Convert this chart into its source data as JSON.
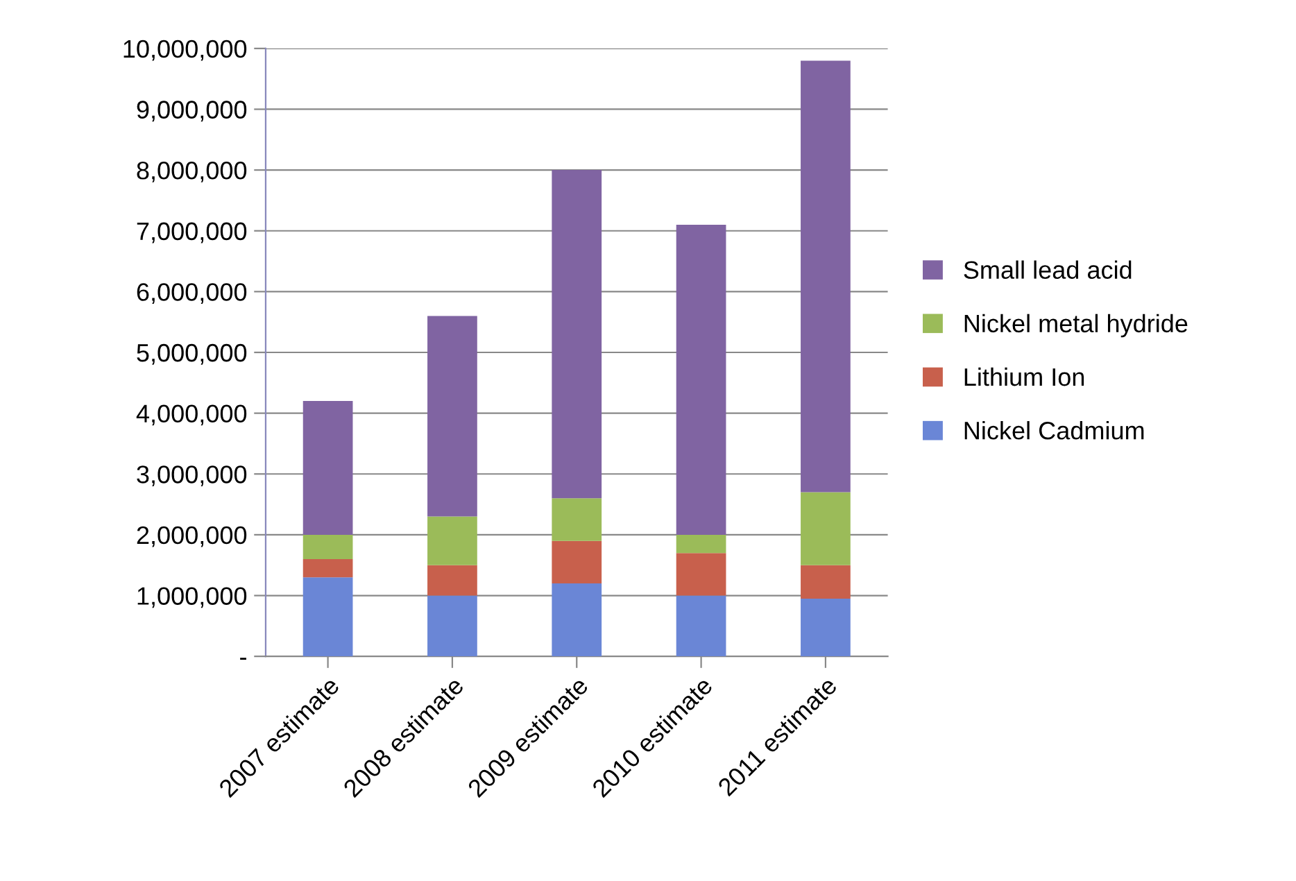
{
  "chart_data": {
    "type": "bar",
    "stacked": true,
    "categories": [
      "2007 estimate",
      "2008 estimate",
      "2009 estimate",
      "2010 estimate",
      "2011 estimate"
    ],
    "series": [
      {
        "name": "Nickel Cadmium",
        "color": "#6a86d6",
        "values": [
          1300000,
          1000000,
          1200000,
          1000000,
          950000
        ]
      },
      {
        "name": "Lithium Ion",
        "color": "#c8604c",
        "values": [
          300000,
          500000,
          700000,
          700000,
          550000
        ]
      },
      {
        "name": "Nickel metal hydride",
        "color": "#9bbb59",
        "values": [
          400000,
          800000,
          700000,
          300000,
          1200000
        ]
      },
      {
        "name": "Small lead acid",
        "color": "#8064a2",
        "values": [
          2200000,
          3300000,
          5400000,
          5100000,
          7100000
        ]
      }
    ],
    "ylim": [
      0,
      10000000
    ],
    "yticks": [
      {
        "value": 0,
        "label": "-"
      },
      {
        "value": 1000000,
        "label": "1,000,000"
      },
      {
        "value": 2000000,
        "label": "2,000,000"
      },
      {
        "value": 3000000,
        "label": "3,000,000"
      },
      {
        "value": 4000000,
        "label": "4,000,000"
      },
      {
        "value": 5000000,
        "label": "5,000,000"
      },
      {
        "value": 6000000,
        "label": "6,000,000"
      },
      {
        "value": 7000000,
        "label": "7,000,000"
      },
      {
        "value": 8000000,
        "label": "8,000,000"
      },
      {
        "value": 9000000,
        "label": "9,000,000"
      },
      {
        "value": 10000000,
        "label": "10,000,000"
      }
    ],
    "grid": "y",
    "legend": "right"
  }
}
